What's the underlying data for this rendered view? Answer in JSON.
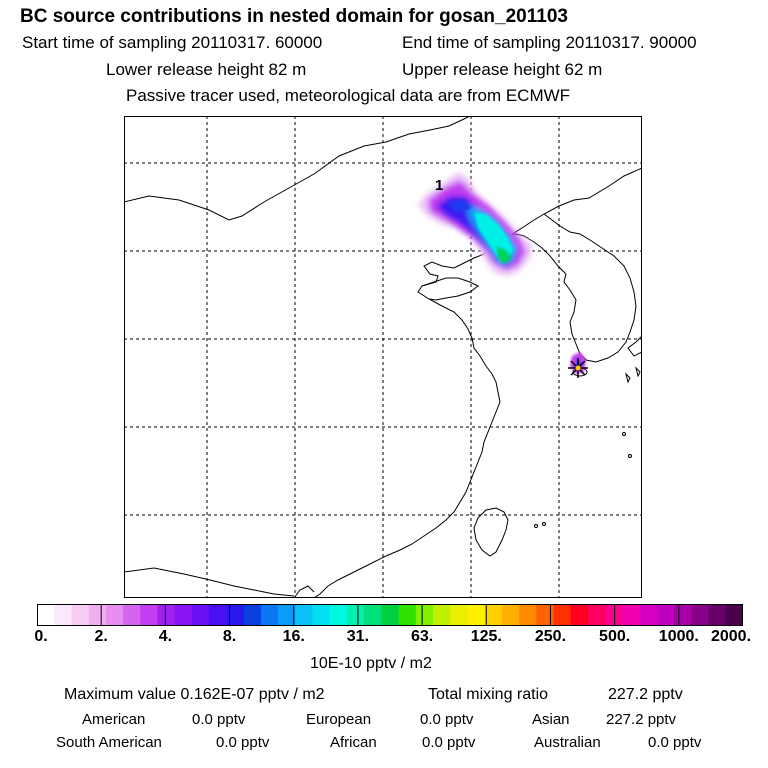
{
  "header": {
    "title": "BC  source contributions in nested domain for gosan_201103",
    "start_time": "Start time of sampling 20110317. 60000",
    "end_time": "End time of sampling 20110317. 90000",
    "lower_release": "Lower release height   82 m",
    "upper_release": "Upper release height   62 m",
    "note": "Passive tracer used, meteorological data are from ECMWF"
  },
  "map": {
    "source_label": "1",
    "receptor_marker": "star-icon"
  },
  "colorbar": {
    "tick_labels": [
      "0.",
      "2.",
      "4.",
      "8.",
      "16.",
      "31.",
      "63.",
      "125.",
      "250.",
      "500.",
      "1000.",
      "2000."
    ],
    "unit": "10E-10 pptv / m2",
    "colors": [
      "#ffffff",
      "#fbe8fb",
      "#f5cdf5",
      "#f0b0f0",
      "#e590ef",
      "#d565ef",
      "#c23ef0",
      "#a020f0",
      "#8a14f3",
      "#6a10f5",
      "#4a10f5",
      "#2a18ee",
      "#0a40e0",
      "#0a78f2",
      "#0a9cf6",
      "#0cc0f8",
      "#00e0f0",
      "#00f8e0",
      "#00f0b0",
      "#00e07a",
      "#00d040",
      "#30e000",
      "#80ef00",
      "#c0f000",
      "#e8f000",
      "#fff000",
      "#ffd000",
      "#ffb000",
      "#ff8a00",
      "#ff6000",
      "#ff3000",
      "#ff0020",
      "#ff0060",
      "#f80090",
      "#f000b0",
      "#d800c0",
      "#c000c0",
      "#a800a8",
      "#880088",
      "#680068",
      "#4a004a"
    ]
  },
  "stats": {
    "maximum_value": "Maximum value  0.162E-07 pptv / m2",
    "total_mixing": "Total mixing ratio",
    "total_mixing_value": "227.2 pptv",
    "regions": [
      {
        "name": "American",
        "value": "0.0 pptv"
      },
      {
        "name": "European",
        "value": "0.0 pptv"
      },
      {
        "name": "Asian",
        "value": "227.2 pptv"
      },
      {
        "name": "South American",
        "value": "0.0 pptv"
      },
      {
        "name": "African",
        "value": "0.0 pptv"
      },
      {
        "name": "Australian",
        "value": "0.0 pptv"
      }
    ]
  }
}
